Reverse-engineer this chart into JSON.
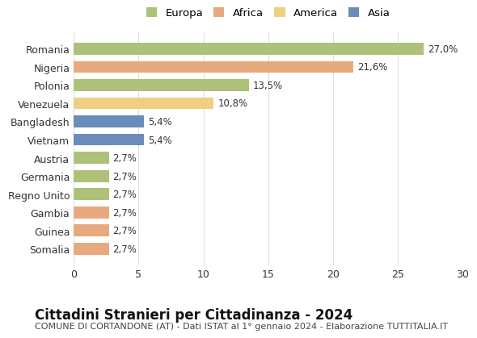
{
  "categories": [
    "Romania",
    "Nigeria",
    "Polonia",
    "Venezuela",
    "Bangladesh",
    "Vietnam",
    "Austria",
    "Germania",
    "Regno Unito",
    "Gambia",
    "Guinea",
    "Somalia"
  ],
  "values": [
    27.0,
    21.6,
    13.5,
    10.8,
    5.4,
    5.4,
    2.7,
    2.7,
    2.7,
    2.7,
    2.7,
    2.7
  ],
  "labels": [
    "27,0%",
    "21,6%",
    "13,5%",
    "10,8%",
    "5,4%",
    "5,4%",
    "2,7%",
    "2,7%",
    "2,7%",
    "2,7%",
    "2,7%",
    "2,7%"
  ],
  "continent": [
    "Europa",
    "Africa",
    "Europa",
    "America",
    "Asia",
    "Asia",
    "Europa",
    "Europa",
    "Europa",
    "Africa",
    "Africa",
    "Africa"
  ],
  "colors": {
    "Europa": "#adc178",
    "Africa": "#e8a97e",
    "America": "#f0d080",
    "Asia": "#6b8cba"
  },
  "xlim": [
    0,
    30
  ],
  "xticks": [
    0,
    5,
    10,
    15,
    20,
    25,
    30
  ],
  "title": "Cittadini Stranieri per Cittadinanza - 2024",
  "subtitle": "COMUNE DI CORTANDONE (AT) - Dati ISTAT al 1° gennaio 2024 - Elaborazione TUTTITALIA.IT",
  "bg_color": "#ffffff",
  "grid_color": "#dddddd",
  "bar_height": 0.65,
  "label_fontsize": 8.5,
  "ytick_fontsize": 9,
  "title_fontsize": 12,
  "subtitle_fontsize": 8
}
